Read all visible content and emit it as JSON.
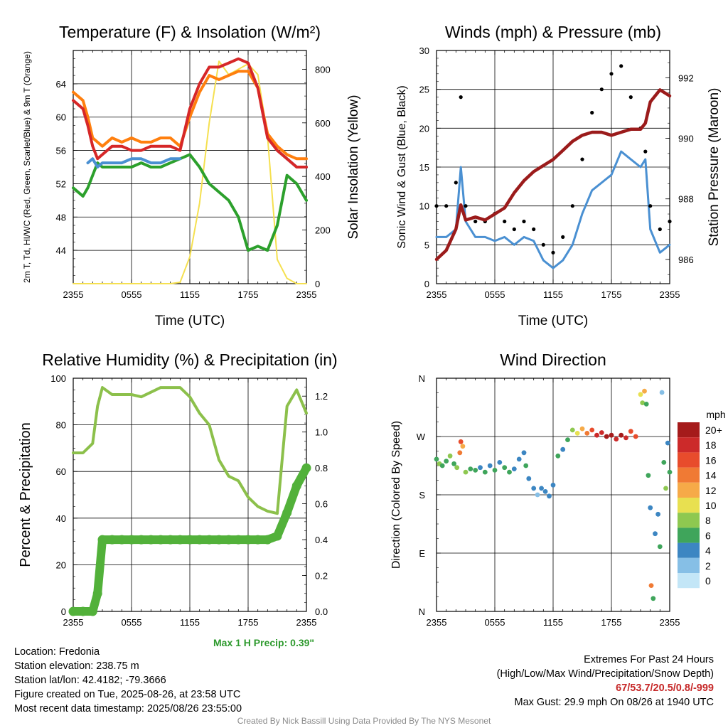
{
  "chart_data": [
    {
      "type": "line",
      "title": "Temperature (F) & Insolation (W/m²)",
      "xlabel": "Time (UTC)",
      "ylabel_left": "2m T, Td, HI/WC (Red, Green, Scarlet/Blue) & 9m T (Orange)",
      "ylabel_right": "Solar Insolation (Yellow)",
      "x_ticks": [
        "2355",
        "0555",
        "1155",
        "1755",
        "2355"
      ],
      "ylim_left": [
        40,
        68
      ],
      "y_ticks_left": [
        44,
        48,
        52,
        56,
        60,
        64
      ],
      "ylim_right": [
        0,
        870
      ],
      "y_ticks_right": [
        0,
        200,
        400,
        600,
        800
      ],
      "x_hours": [
        0,
        1,
        1.5,
        2,
        2.5,
        3,
        4,
        5,
        6,
        7,
        8,
        9,
        10,
        11,
        12,
        13,
        14,
        15,
        16,
        17,
        18,
        19,
        20,
        21,
        22,
        23,
        24
      ],
      "series": [
        {
          "key": "temp",
          "color": "#d62728",
          "axis": "left",
          "values": [
            62,
            61,
            59,
            56.5,
            55,
            55.5,
            56.5,
            56.5,
            56,
            56,
            56.5,
            56.5,
            56.5,
            56,
            61,
            64,
            66,
            66,
            66.5,
            67,
            66.5,
            63.5,
            57.5,
            56,
            55,
            54,
            54
          ]
        },
        {
          "key": "temp_9m",
          "color": "#ff7f0e",
          "axis": "left",
          "values": [
            63,
            62,
            60,
            57.5,
            57,
            56.5,
            57.5,
            57,
            57.5,
            57,
            57,
            57.5,
            57.5,
            56.5,
            60,
            63,
            65,
            64.5,
            65,
            65.5,
            65.5,
            63.5,
            58,
            56.5,
            55.5,
            55,
            55
          ]
        },
        {
          "key": "dewpoint",
          "color": "#2ca02c",
          "axis": "left",
          "values": [
            51.5,
            50.5,
            51.5,
            53,
            54.5,
            54,
            54,
            54,
            54,
            54.5,
            54,
            54,
            54.5,
            55,
            55.5,
            54,
            52,
            51,
            50,
            48,
            44,
            44.5,
            44,
            47,
            53,
            52,
            50
          ]
        },
        {
          "key": "heat_index_wind_chill",
          "color": "#4a90d2",
          "axis": "left",
          "values": [
            null,
            null,
            54.5,
            55,
            54,
            54.5,
            54.5,
            54.5,
            55,
            55,
            54.5,
            54.5,
            55,
            55,
            null,
            null,
            null,
            null,
            null,
            null,
            null,
            null,
            null,
            56,
            55,
            54,
            54
          ]
        },
        {
          "key": "solar_insolation",
          "color": "#f5e050",
          "axis": "right",
          "values": [
            0,
            0,
            0,
            0,
            0,
            0,
            0,
            0,
            0,
            0,
            0,
            0,
            0,
            5,
            100,
            300,
            600,
            830,
            780,
            800,
            820,
            780,
            550,
            90,
            20,
            0,
            0
          ]
        }
      ]
    },
    {
      "type": "line",
      "title": "Winds (mph) & Pressure (mb)",
      "xlabel": "Time (UTC)",
      "ylabel_left": "Sonic Wind & Gust (Blue, Black)",
      "ylabel_right": "Station Pressure (Maroon)",
      "x_ticks": [
        "2355",
        "0555",
        "1155",
        "1755",
        "2355"
      ],
      "ylim_left": [
        0,
        30
      ],
      "y_ticks_left": [
        0,
        5,
        10,
        15,
        20,
        25,
        30
      ],
      "ylim_right": [
        985.2,
        992.9
      ],
      "y_ticks_right": [
        986,
        988,
        990,
        992
      ],
      "x_hours": [
        0,
        1,
        2,
        2.5,
        3,
        4,
        5,
        6,
        7,
        8,
        9,
        10,
        11,
        12,
        13,
        14,
        15,
        16,
        17,
        18,
        19,
        20,
        21,
        21.5,
        22,
        23,
        24
      ],
      "series": [
        {
          "key": "sonic_wind",
          "color": "#4a90d2",
          "axis": "left",
          "values": [
            6,
            6,
            7,
            15,
            8,
            6,
            6,
            5.5,
            6,
            5,
            6,
            5.5,
            3,
            2,
            3,
            5,
            9,
            12,
            13,
            14,
            17,
            16,
            15,
            16,
            7,
            4,
            5
          ]
        },
        {
          "key": "gust",
          "color": "#000000",
          "axis": "left",
          "values": [
            10,
            10,
            13,
            24,
            10,
            8,
            8,
            9,
            8,
            7,
            8,
            7,
            5,
            4,
            6,
            10,
            16,
            22,
            25,
            27,
            28,
            24,
            20,
            17,
            10,
            7,
            8
          ]
        },
        {
          "key": "station_pressure",
          "color": "#9b1b1b",
          "axis": "right",
          "values": [
            986,
            986.3,
            987,
            987.8,
            987.3,
            987.4,
            987.3,
            987.5,
            987.7,
            988.2,
            988.6,
            988.9,
            989.1,
            989.3,
            989.6,
            989.9,
            990.1,
            990.2,
            990.2,
            990.1,
            990.2,
            990.3,
            990.3,
            990.5,
            991.2,
            991.6,
            991.4
          ]
        }
      ]
    },
    {
      "type": "line",
      "title": "Relative Humidity (%) & Precipitation (in)",
      "ylabel_left": "Percent & Precipitation",
      "x_ticks": [
        "2355",
        "0555",
        "1155",
        "1755",
        "2355"
      ],
      "ylim_left": [
        0,
        100
      ],
      "y_ticks_left": [
        0,
        20,
        40,
        60,
        80,
        100
      ],
      "ylim_right": [
        0,
        1.3
      ],
      "y_ticks_right": [
        "0.0",
        "0.2",
        "0.4",
        "0.6",
        "0.8",
        "1.0",
        "1.2"
      ],
      "x_hours": [
        0,
        1,
        2,
        2.5,
        3,
        4,
        5,
        6,
        7,
        8,
        9,
        10,
        11,
        12,
        13,
        14,
        15,
        16,
        17,
        18,
        19,
        20,
        21,
        22,
        23,
        24
      ],
      "series": [
        {
          "key": "relative_humidity",
          "color": "#8cc04b",
          "axis": "left",
          "values": [
            68,
            68,
            72,
            88,
            96,
            93,
            93,
            93,
            92,
            94,
            96,
            96,
            96,
            92,
            85,
            80,
            65,
            58,
            56,
            49,
            45,
            43,
            42,
            88,
            95,
            85
          ]
        },
        {
          "key": "precipitation",
          "color": "#52b13a",
          "axis": "right",
          "values": [
            0,
            0,
            0,
            0.1,
            0.4,
            0.4,
            0.4,
            0.4,
            0.4,
            0.4,
            0.4,
            0.4,
            0.4,
            0.4,
            0.4,
            0.4,
            0.4,
            0.4,
            0.4,
            0.4,
            0.4,
            0.4,
            0.42,
            0.55,
            0.7,
            0.8
          ]
        }
      ],
      "annotation": "Max 1 H Precip: 0.39\""
    },
    {
      "type": "scatter",
      "title": "Wind Direction",
      "ylabel": "Direction (Colored By Speed)",
      "x_ticks": [
        "2355",
        "0555",
        "1155",
        "1755",
        "2355"
      ],
      "y_ticks": [
        "N",
        "E",
        "S",
        "W",
        "N"
      ],
      "ylim": [
        0,
        360
      ],
      "colorbar_title": "mph",
      "colorbar_labels": [
        "20+",
        "18",
        "16",
        "14",
        "12",
        "10",
        "8",
        "6",
        "4",
        "2",
        "0"
      ],
      "colorbar_colors": [
        "#a51b1b",
        "#cc2a2a",
        "#e84c2c",
        "#f07a34",
        "#f6aa48",
        "#e8e050",
        "#8ec850",
        "#3fa55b",
        "#3c86c2",
        "#86bfe6",
        "#c3e6f7"
      ],
      "points": [
        {
          "h": 0,
          "dir": 235,
          "spd": 6
        },
        {
          "h": 0.3,
          "dir": 228,
          "spd": 7
        },
        {
          "h": 0.6,
          "dir": 225,
          "spd": 5
        },
        {
          "h": 1,
          "dir": 232,
          "spd": 6
        },
        {
          "h": 1.4,
          "dir": 240,
          "spd": 7
        },
        {
          "h": 1.8,
          "dir": 228,
          "spd": 6
        },
        {
          "h": 2.1,
          "dir": 222,
          "spd": 7
        },
        {
          "h": 2.4,
          "dir": 245,
          "spd": 14
        },
        {
          "h": 2.5,
          "dir": 262,
          "spd": 16
        },
        {
          "h": 2.7,
          "dir": 255,
          "spd": 12
        },
        {
          "h": 3,
          "dir": 215,
          "spd": 7
        },
        {
          "h": 3.5,
          "dir": 220,
          "spd": 6
        },
        {
          "h": 4,
          "dir": 218,
          "spd": 5
        },
        {
          "h": 4.5,
          "dir": 222,
          "spd": 4
        },
        {
          "h": 5,
          "dir": 215,
          "spd": 5
        },
        {
          "h": 5.5,
          "dir": 225,
          "spd": 4
        },
        {
          "h": 6,
          "dir": 218,
          "spd": 5
        },
        {
          "h": 6.5,
          "dir": 230,
          "spd": 4
        },
        {
          "h": 7,
          "dir": 222,
          "spd": 5
        },
        {
          "h": 7.5,
          "dir": 215,
          "spd": 6
        },
        {
          "h": 8,
          "dir": 220,
          "spd": 4
        },
        {
          "h": 8.5,
          "dir": 235,
          "spd": 4
        },
        {
          "h": 9,
          "dir": 245,
          "spd": 3
        },
        {
          "h": 9.2,
          "dir": 225,
          "spd": 5
        },
        {
          "h": 9.5,
          "dir": 205,
          "spd": 3
        },
        {
          "h": 10,
          "dir": 190,
          "spd": 3
        },
        {
          "h": 10.4,
          "dir": 180,
          "spd": 2
        },
        {
          "h": 10.8,
          "dir": 190,
          "spd": 4
        },
        {
          "h": 11.2,
          "dir": 185,
          "spd": 3
        },
        {
          "h": 11.6,
          "dir": 178,
          "spd": 3
        },
        {
          "h": 12,
          "dir": 195,
          "spd": 4
        },
        {
          "h": 12.5,
          "dir": 240,
          "spd": 5
        },
        {
          "h": 13,
          "dir": 250,
          "spd": 4
        },
        {
          "h": 13.5,
          "dir": 265,
          "spd": 6
        },
        {
          "h": 14,
          "dir": 280,
          "spd": 7
        },
        {
          "h": 14.5,
          "dir": 275,
          "spd": 9
        },
        {
          "h": 15,
          "dir": 282,
          "spd": 11
        },
        {
          "h": 15.5,
          "dir": 275,
          "spd": 13
        },
        {
          "h": 16,
          "dir": 280,
          "spd": 16
        },
        {
          "h": 16.5,
          "dir": 272,
          "spd": 18
        },
        {
          "h": 17,
          "dir": 276,
          "spd": 17
        },
        {
          "h": 17.5,
          "dir": 270,
          "spd": 19
        },
        {
          "h": 18,
          "dir": 272,
          "spd": 20
        },
        {
          "h": 18.5,
          "dir": 266,
          "spd": 18
        },
        {
          "h": 19,
          "dir": 272,
          "spd": 20
        },
        {
          "h": 19.5,
          "dir": 268,
          "spd": 17
        },
        {
          "h": 20,
          "dir": 278,
          "spd": 16
        },
        {
          "h": 20.5,
          "dir": 270,
          "spd": 15
        },
        {
          "h": 21,
          "dir": 335,
          "spd": 10
        },
        {
          "h": 21.2,
          "dir": 322,
          "spd": 8
        },
        {
          "h": 21.4,
          "dir": 340,
          "spd": 12
        },
        {
          "h": 21.6,
          "dir": 320,
          "spd": 6
        },
        {
          "h": 21.8,
          "dir": 210,
          "spd": 5
        },
        {
          "h": 22,
          "dir": 160,
          "spd": 4
        },
        {
          "h": 22.1,
          "dir": 40,
          "spd": 14
        },
        {
          "h": 22.3,
          "dir": 20,
          "spd": 6
        },
        {
          "h": 22.5,
          "dir": 120,
          "spd": 3
        },
        {
          "h": 22.8,
          "dir": 150,
          "spd": 4
        },
        {
          "h": 23,
          "dir": 100,
          "spd": 5
        },
        {
          "h": 23.2,
          "dir": 338,
          "spd": 2
        },
        {
          "h": 23.4,
          "dir": 230,
          "spd": 5
        },
        {
          "h": 23.6,
          "dir": 190,
          "spd": 7
        },
        {
          "h": 23.8,
          "dir": 260,
          "spd": 4
        },
        {
          "h": 24,
          "dir": 215,
          "spd": 6
        }
      ]
    }
  ],
  "info_left": {
    "location": "Location: Fredonia",
    "elevation": "Station elevation: 238.75 m",
    "latlon": "Station lat/lon: 42.4182; -79.3666",
    "created": "Figure created on Tue, 2025-08-26, at 23:58 UTC",
    "recent": "Most recent data timestamp: 2025/08/26 23:55:00"
  },
  "info_right": {
    "title": "Extremes For Past 24 Hours",
    "subtitle": "(High/Low/Max Wind/Precipitation/Snow Depth)",
    "values": "67/53.7/20.5/0.8/-999",
    "gust": "Max Gust: 29.9 mph On 08/26 at 1940 UTC"
  },
  "credit": "Created By Nick Bassill Using Data Provided By The NYS Mesonet"
}
